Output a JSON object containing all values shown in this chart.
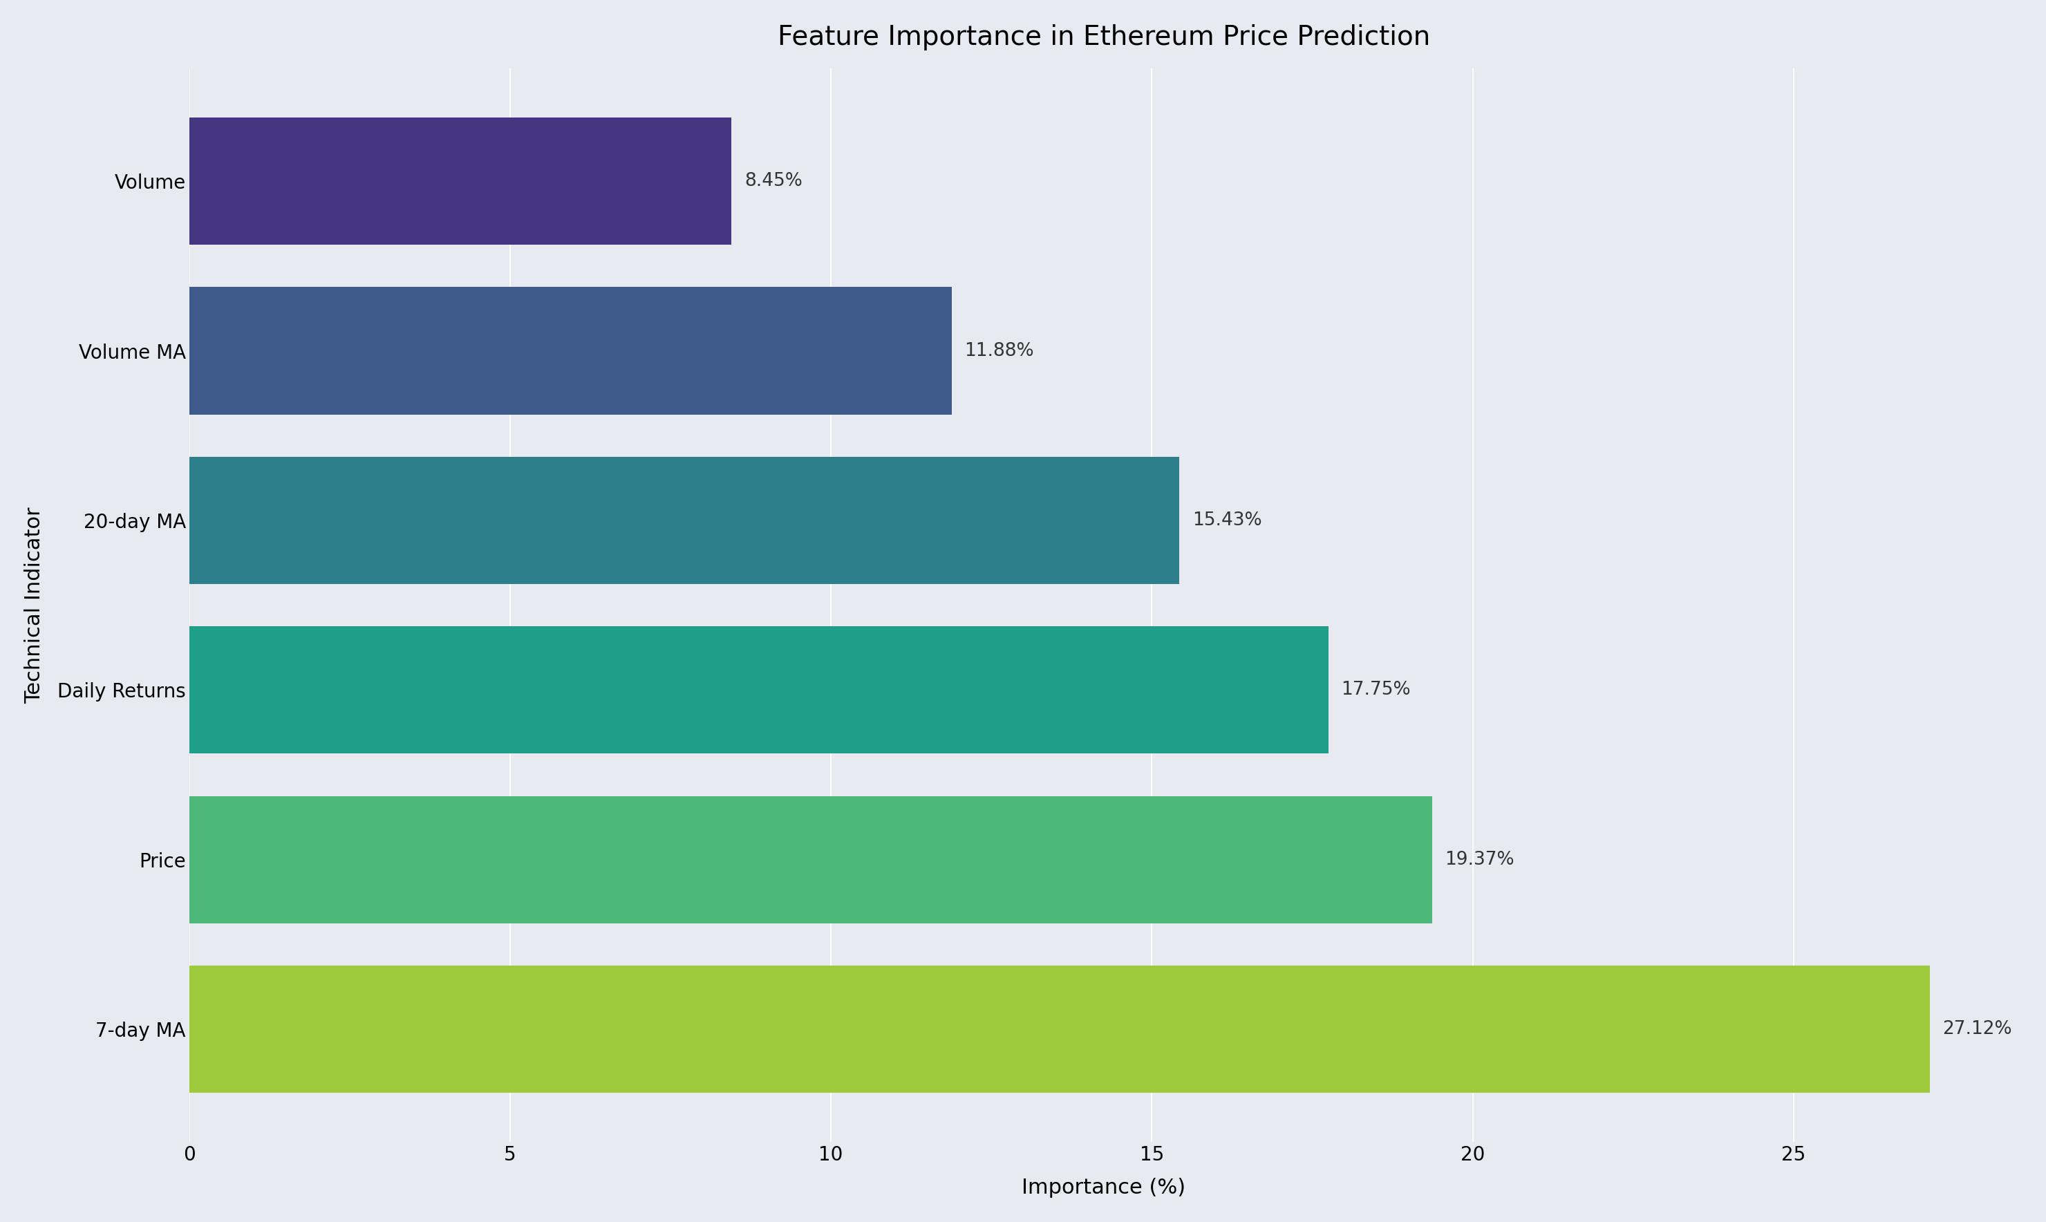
{
  "title": "Feature Importance in Ethereum Price Prediction",
  "categories": [
    "Volume",
    "Volume MA",
    "20-day MA",
    "Daily Returns",
    "Price",
    "7-day MA"
  ],
  "values": [
    8.45,
    11.88,
    15.43,
    17.75,
    19.37,
    27.12
  ],
  "bar_colors": [
    "#463580",
    "#3d5a8a",
    "#2e7f8c",
    "#1f9e89",
    "#4db87a",
    "#9ecb3c"
  ],
  "xlabel": "Importance (%)",
  "ylabel": "Technical Indicator",
  "xlim": [
    0,
    28.5
  ],
  "xticks": [
    0,
    5,
    10,
    15,
    20,
    25
  ],
  "background_color": "#e8eaf2",
  "title_fontsize": 28,
  "label_fontsize": 22,
  "tick_fontsize": 20,
  "annotation_fontsize": 19,
  "bar_height": 0.75
}
